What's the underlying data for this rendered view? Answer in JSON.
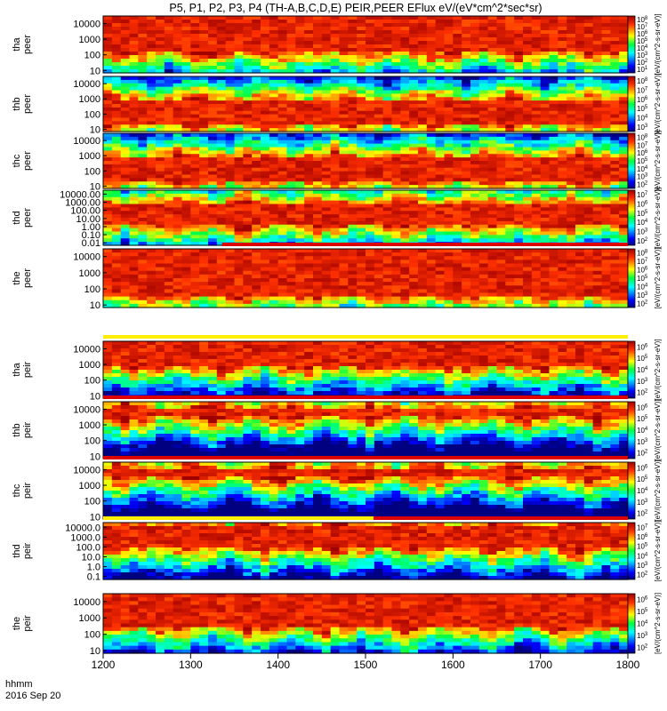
{
  "title": "P5, P1, P2, P3, P4 (TH-A,B,C,D,E) PEIR,PEER EFlux eV/(eV*cm^2*sec*sr)",
  "time_axis": {
    "label_line1": "hhmm",
    "label_line2": "2016 Sep 20",
    "ticks": [
      "1200",
      "1300",
      "1400",
      "1500",
      "1600",
      "1700",
      "1800"
    ],
    "values": [
      1200,
      1300,
      1400,
      1500,
      1600,
      1700,
      1800
    ],
    "xlim": [
      1200,
      1800
    ]
  },
  "colorbar_label": "[eV/(cm^2-s-sr-eV)]",
  "chart_data": [
    {
      "type": "heatmap",
      "probe": "tha",
      "species": "peer",
      "ylabel": "tha\npeer",
      "yticks": [
        "10",
        "100",
        "1000",
        "10000"
      ],
      "ylim": [
        7,
        30000
      ],
      "cbar_ticks": [
        "10^1",
        "10^2",
        "10^3",
        "10^4",
        "10^5",
        "10^6",
        "10^7",
        "10^8"
      ],
      "band": [
        0.35,
        1.0
      ],
      "band2": [
        0.0,
        0.0
      ],
      "flag_bar": null
    },
    {
      "type": "heatmap",
      "probe": "thb",
      "species": "peer",
      "ylabel": "thb\npeer",
      "yticks": [
        "10",
        "100",
        "1000",
        "10000"
      ],
      "ylim": [
        7,
        30000
      ],
      "cbar_ticks": [
        "10^3",
        "10^4",
        "10^5",
        "10^6",
        "10^7",
        "10^8"
      ],
      "band": [
        0.15,
        0.55
      ],
      "band2": [
        0.0,
        0.0
      ],
      "flag_bar": null
    },
    {
      "type": "heatmap",
      "probe": "thc",
      "species": "peer",
      "ylabel": "thc\npeer",
      "yticks": [
        "10",
        "100",
        "1000",
        "10000"
      ],
      "ylim": [
        7,
        30000
      ],
      "cbar_ticks": [
        "10^2",
        "10^3",
        "10^4",
        "10^5",
        "10^6",
        "10^7",
        "10^8"
      ],
      "band": [
        0.15,
        0.55
      ],
      "band2": [
        0.0,
        0.0
      ],
      "flag_bar": null
    },
    {
      "type": "heatmap",
      "probe": "thd",
      "species": "peer",
      "ylabel": "thd\npeer",
      "yticks": [
        "0.01",
        "0.10",
        "1.00",
        "10.00",
        "100.00",
        "1000.00",
        "10000.00"
      ],
      "ylim": [
        0.005,
        30000
      ],
      "cbar_ticks": [
        "10^2",
        "10^3",
        "10^4",
        "10^5",
        "10^6",
        "10^7"
      ],
      "band": [
        0.35,
        0.75
      ],
      "band2": [
        0.0,
        0.0
      ],
      "flag_bar": null
    },
    {
      "type": "heatmap",
      "probe": "the",
      "species": "peer",
      "ylabel": "the\npeer",
      "yticks": [
        "10",
        "100",
        "1000",
        "10000"
      ],
      "ylim": [
        7,
        30000
      ],
      "cbar_ticks": [
        "10^2",
        "10^3",
        "10^4",
        "10^5",
        "10^6",
        "10^7",
        "10^8"
      ],
      "band": [
        0.2,
        1.0
      ],
      "band2": [
        0.0,
        0.0
      ],
      "flag_bar": [
        [
          1332,
          1800,
          "#dd0000"
        ]
      ]
    },
    {
      "type": "heatmap",
      "probe": "tha",
      "species": "peir",
      "ylabel": "tha\npeir",
      "yticks": [
        "10",
        "100",
        "1000",
        "10000"
      ],
      "ylim": [
        7,
        30000
      ],
      "cbar_ticks": [
        "10^2",
        "10^3",
        "10^4",
        "10^5",
        "10^6"
      ],
      "band": [
        0.55,
        1.0
      ],
      "band2": [
        0.0,
        0.0
      ],
      "flag_bar": [
        [
          1200,
          1800,
          "#ffee00"
        ]
      ]
    },
    {
      "type": "heatmap",
      "probe": "thb",
      "species": "peir",
      "ylabel": "thb\npeir",
      "yticks": [
        "10",
        "100",
        "1000",
        "10000"
      ],
      "ylim": [
        7,
        30000
      ],
      "cbar_ticks": [
        "10^2",
        "10^3",
        "10^4",
        "10^5",
        "10^6"
      ],
      "band": [
        0.72,
        0.88
      ],
      "band2": [
        0.0,
        0.0
      ],
      "flag_bar": [
        [
          1200,
          1800,
          "#dd0000"
        ]
      ]
    },
    {
      "type": "heatmap",
      "probe": "thc",
      "species": "peir",
      "ylabel": "thc\npeir",
      "yticks": [
        "10",
        "100",
        "1000",
        "10000"
      ],
      "ylim": [
        7,
        30000
      ],
      "cbar_ticks": [
        "10^2",
        "10^3",
        "10^4",
        "10^5",
        "10^6"
      ],
      "band": [
        0.72,
        0.88
      ],
      "band2": [
        0.0,
        0.0
      ],
      "flag_bar": [
        [
          1200,
          1800,
          "#dd0000"
        ]
      ]
    },
    {
      "type": "heatmap",
      "probe": "thd",
      "species": "peir",
      "ylabel": "thd\npeir",
      "yticks": [
        "0.1",
        "1.0",
        "10.0",
        "100.0",
        "1000.0",
        "10000.0"
      ],
      "ylim": [
        0.05,
        30000
      ],
      "cbar_ticks": [
        "10^2",
        "10^3",
        "10^4",
        "10^5",
        "10^6",
        "10^7"
      ],
      "band": [
        0.55,
        0.95
      ],
      "band2": [
        0.0,
        0.0
      ],
      "flag_bar": [
        [
          1200,
          1500,
          "#ffee00"
        ],
        [
          1500,
          1800,
          "#dd0000"
        ]
      ]
    },
    {
      "type": "heatmap",
      "probe": "the",
      "species": "peir",
      "ylabel": "the\npeir",
      "yticks": [
        "10",
        "100",
        "1000",
        "10000"
      ],
      "ylim": [
        7,
        30000
      ],
      "cbar_ticks": [
        "10^2",
        "10^3",
        "10^4",
        "10^5",
        "10^6"
      ],
      "band": [
        0.45,
        1.0
      ],
      "band2": [
        0.0,
        0.0
      ],
      "flag_bar": null
    }
  ]
}
